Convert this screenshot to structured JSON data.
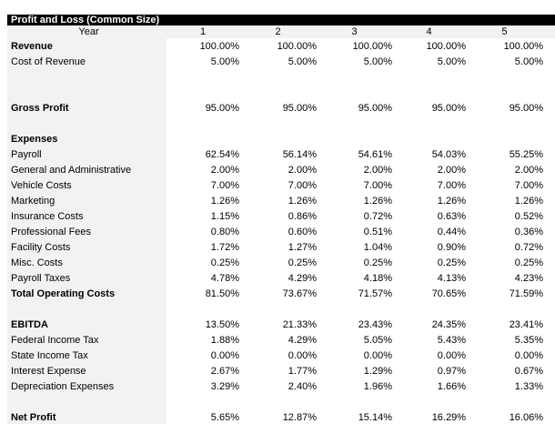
{
  "title": "Profit and Loss (Common Size)",
  "header": {
    "label": "Year",
    "years": [
      "1",
      "2",
      "3",
      "4",
      "5"
    ]
  },
  "rows": [
    {
      "label": "Revenue",
      "bold": true,
      "values": [
        "100.00%",
        "100.00%",
        "100.00%",
        "100.00%",
        "100.00%"
      ]
    },
    {
      "label": "Cost of Revenue",
      "values": [
        "5.00%",
        "5.00%",
        "5.00%",
        "5.00%",
        "5.00%"
      ]
    },
    {
      "label": "",
      "values": []
    },
    {
      "label": "",
      "values": []
    },
    {
      "label": "Gross Profit",
      "bold": true,
      "values": [
        "95.00%",
        "95.00%",
        "95.00%",
        "95.00%",
        "95.00%"
      ]
    },
    {
      "label": "",
      "values": []
    },
    {
      "label": "Expenses",
      "bold": true,
      "values": []
    },
    {
      "label": "Payroll",
      "values": [
        "62.54%",
        "56.14%",
        "54.61%",
        "54.03%",
        "55.25%"
      ]
    },
    {
      "label": "General and Administrative",
      "values": [
        "2.00%",
        "2.00%",
        "2.00%",
        "2.00%",
        "2.00%"
      ]
    },
    {
      "label": "Vehicle Costs",
      "values": [
        "7.00%",
        "7.00%",
        "7.00%",
        "7.00%",
        "7.00%"
      ]
    },
    {
      "label": "Marketing",
      "values": [
        "1.26%",
        "1.26%",
        "1.26%",
        "1.26%",
        "1.26%"
      ]
    },
    {
      "label": "Insurance Costs",
      "values": [
        "1.15%",
        "0.86%",
        "0.72%",
        "0.63%",
        "0.52%"
      ]
    },
    {
      "label": "Professional Fees",
      "values": [
        "0.80%",
        "0.60%",
        "0.51%",
        "0.44%",
        "0.36%"
      ]
    },
    {
      "label": "Facility Costs",
      "values": [
        "1.72%",
        "1.27%",
        "1.04%",
        "0.90%",
        "0.72%"
      ]
    },
    {
      "label": "Misc. Costs",
      "values": [
        "0.25%",
        "0.25%",
        "0.25%",
        "0.25%",
        "0.25%"
      ]
    },
    {
      "label": "Payroll Taxes",
      "values": [
        "4.78%",
        "4.29%",
        "4.18%",
        "4.13%",
        "4.23%"
      ]
    },
    {
      "label": "Total Operating Costs",
      "bold": true,
      "values": [
        "81.50%",
        "73.67%",
        "71.57%",
        "70.65%",
        "71.59%"
      ]
    },
    {
      "label": "",
      "values": []
    },
    {
      "label": "EBITDA",
      "bold": true,
      "values": [
        "13.50%",
        "21.33%",
        "23.43%",
        "24.35%",
        "23.41%"
      ]
    },
    {
      "label": "Federal Income Tax",
      "values": [
        "1.88%",
        "4.29%",
        "5.05%",
        "5.43%",
        "5.35%"
      ]
    },
    {
      "label": "State Income Tax",
      "values": [
        "0.00%",
        "0.00%",
        "0.00%",
        "0.00%",
        "0.00%"
      ]
    },
    {
      "label": "Interest Expense",
      "values": [
        "2.67%",
        "1.77%",
        "1.29%",
        "0.97%",
        "0.67%"
      ]
    },
    {
      "label": "Depreciation Expenses",
      "values": [
        "3.29%",
        "2.40%",
        "1.96%",
        "1.66%",
        "1.33%"
      ]
    },
    {
      "label": "",
      "values": []
    },
    {
      "label": "Net Profit",
      "bold": true,
      "values": [
        "5.65%",
        "12.87%",
        "15.14%",
        "16.29%",
        "16.06%"
      ]
    }
  ]
}
